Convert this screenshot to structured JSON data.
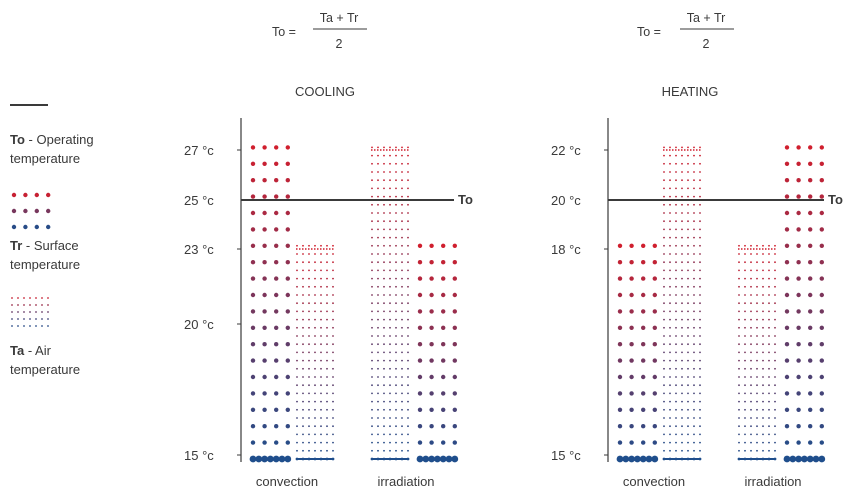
{
  "colors": {
    "red": "#d01f2e",
    "blue": "#1f4e8c",
    "axis": "#3a3a3a"
  },
  "formula": {
    "lhs": "To =",
    "numerator": "Ta + Tr",
    "denominator": "2"
  },
  "legend": {
    "to_key": "To",
    "to_desc": " - Operating",
    "to_desc2": "temperature",
    "tr_key": "Tr",
    "tr_desc": " - Surface",
    "tr_desc2": "temperature",
    "ta_key": "Ta",
    "ta_desc": " - Air",
    "ta_desc2": "temperature"
  },
  "panels": [
    {
      "title": "COOLING",
      "operating_label": "To",
      "ticks": [
        "27 °c",
        "25 °c",
        "23 °c",
        "20 °c",
        "15 °c"
      ],
      "categories": [
        "convection",
        "irradiation"
      ],
      "values": {
        "convection_surface": 27,
        "convection_air": 23,
        "irradiation_air": 27,
        "irradiation_surface": 23,
        "operating": 25
      }
    },
    {
      "title": "HEATING",
      "operating_label": "To",
      "ticks": [
        "22 °c",
        "20 °c",
        "18 °c",
        "15 °c"
      ],
      "categories": [
        "convection",
        "irradiation"
      ],
      "values": {
        "convection_surface": 18,
        "convection_air": 22,
        "irradiation_air": 18,
        "irradiation_surface": 22,
        "operating": 20
      }
    }
  ]
}
